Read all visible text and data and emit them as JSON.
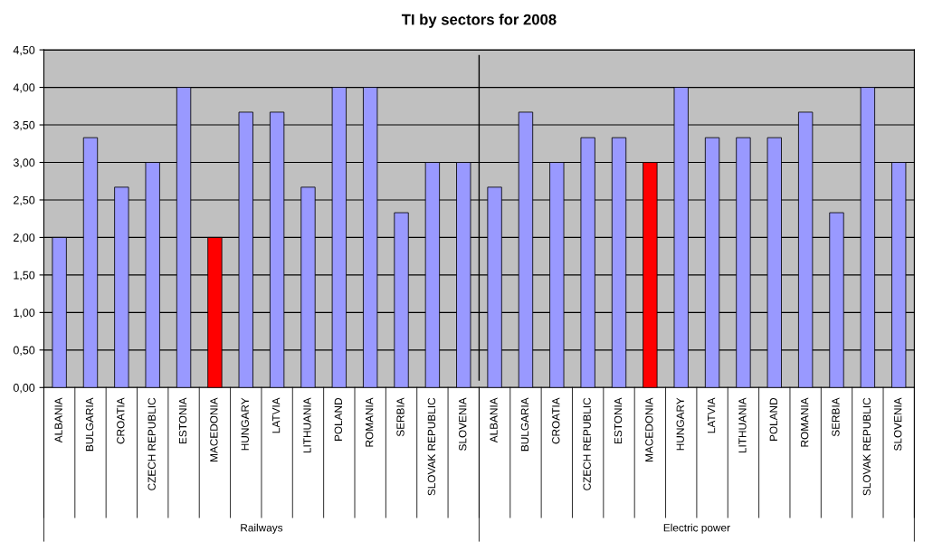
{
  "chart_data": {
    "type": "bar",
    "title": "TI by sectors for 2008",
    "categories": [
      "ALBANIA",
      "BULGARIA",
      "CROATIA",
      "CZECH REPUBLIC",
      "ESTONIA",
      "MACEDONIA",
      "HUNGARY",
      "LATVIA",
      "LITHUANIA",
      "POLAND",
      "ROMANIA",
      "SERBIA",
      "SLOVAK REPUBLIC",
      "SLOVENIA",
      "ALBANIA",
      "BULGARIA",
      "CROATIA",
      "CZECH REPUBLIC",
      "ESTONIA",
      "MACEDONIA",
      "HUNGARY",
      "LATVIA",
      "LITHUANIA",
      "POLAND",
      "ROMANIA",
      "SERBIA",
      "SLOVAK REPUBLIC",
      "SLOVENIA"
    ],
    "values": [
      2.0,
      3.33,
      2.67,
      3.0,
      4.0,
      2.0,
      3.67,
      3.67,
      2.67,
      4.0,
      4.0,
      2.33,
      3.0,
      3.0,
      2.67,
      3.67,
      3.0,
      3.33,
      3.33,
      3.0,
      4.0,
      3.33,
      3.33,
      3.33,
      3.67,
      2.33,
      4.0,
      3.0
    ],
    "colors": [
      "#9999ff",
      "#9999ff",
      "#9999ff",
      "#9999ff",
      "#9999ff",
      "#ff0000",
      "#9999ff",
      "#9999ff",
      "#9999ff",
      "#9999ff",
      "#9999ff",
      "#9999ff",
      "#9999ff",
      "#9999ff",
      "#9999ff",
      "#9999ff",
      "#9999ff",
      "#9999ff",
      "#9999ff",
      "#ff0000",
      "#9999ff",
      "#9999ff",
      "#9999ff",
      "#9999ff",
      "#9999ff",
      "#9999ff",
      "#9999ff",
      "#9999ff"
    ],
    "annotations": [
      "Railways",
      "Electric power"
    ],
    "ylim": [
      0,
      4.5
    ],
    "yticks": [
      {
        "value": 0,
        "label": "0,00"
      },
      {
        "value": 0.5,
        "label": "0,50"
      },
      {
        "value": 1,
        "label": "1,00"
      },
      {
        "value": 1.5,
        "label": "1,50"
      },
      {
        "value": 2,
        "label": "2,00"
      },
      {
        "value": 2.5,
        "label": "2,50"
      },
      {
        "value": 3,
        "label": "3,00"
      },
      {
        "value": 3.5,
        "label": "3,50"
      },
      {
        "value": 4,
        "label": "4,00"
      },
      {
        "value": 4.5,
        "label": "4,50"
      }
    ],
    "grid": "y"
  }
}
